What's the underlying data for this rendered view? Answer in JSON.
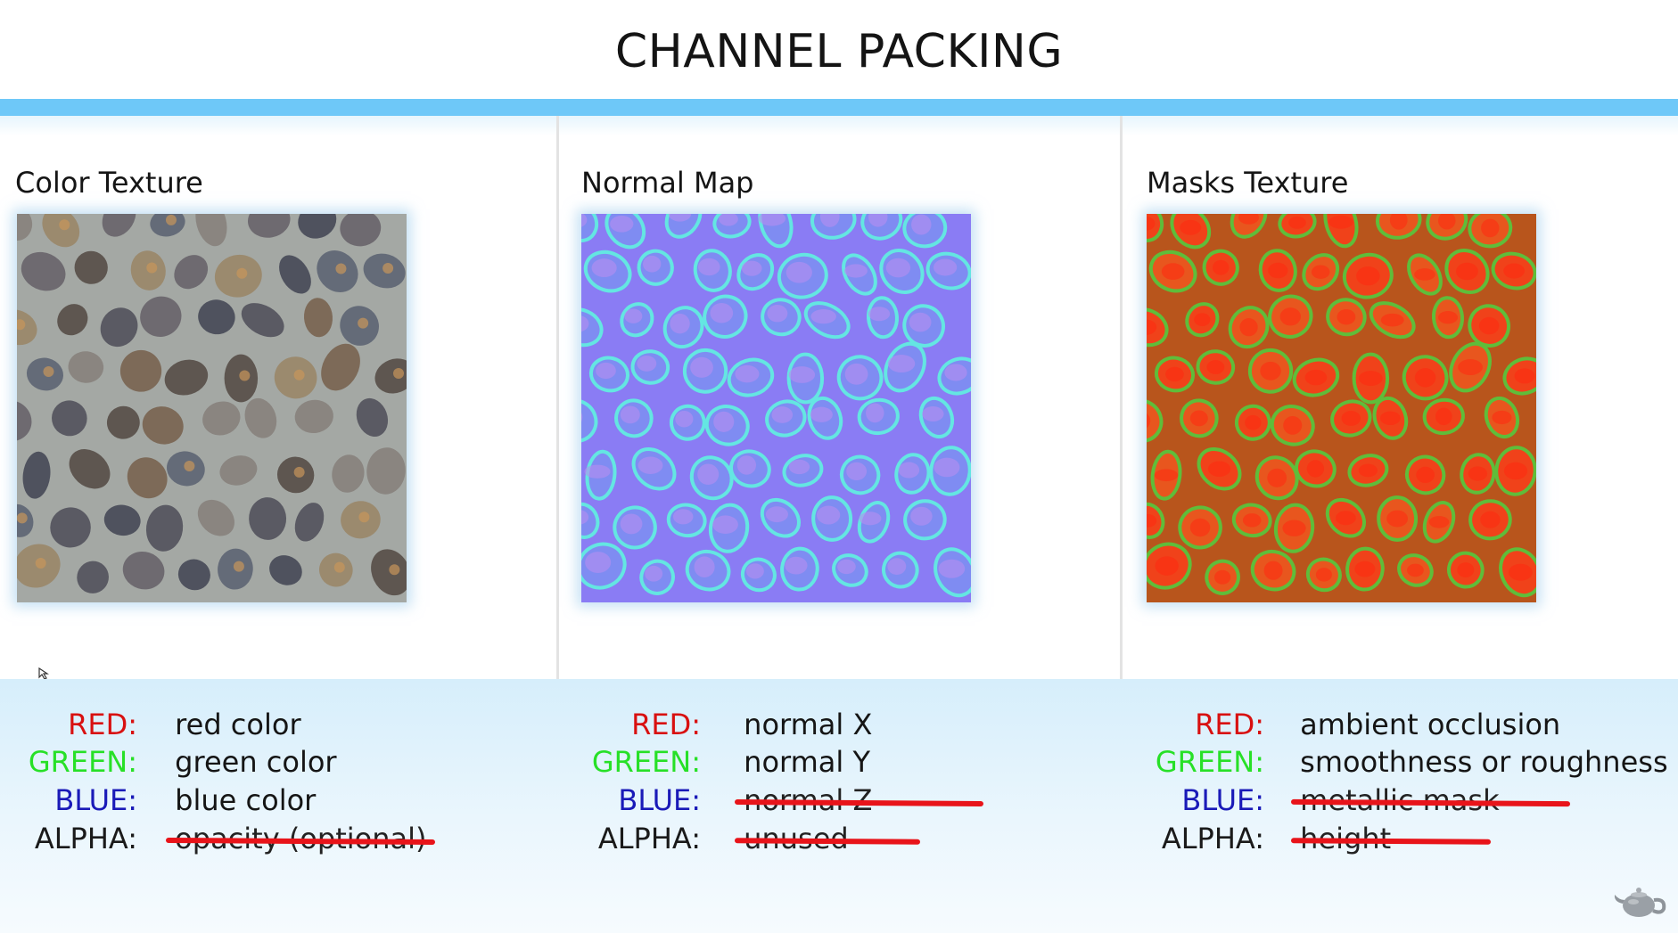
{
  "slide": {
    "title": "CHANNEL PACKING"
  },
  "panels": [
    {
      "label": "Color Texture",
      "channels": [
        {
          "key": "RED:",
          "value": "red color",
          "struck": false
        },
        {
          "key": "GREEN:",
          "value": "green color",
          "struck": false
        },
        {
          "key": "BLUE:",
          "value": "blue color",
          "struck": false
        },
        {
          "key": "ALPHA:",
          "value": "opacity (optional)",
          "struck": true
        }
      ]
    },
    {
      "label": "Normal Map",
      "channels": [
        {
          "key": "RED:",
          "value": "normal X",
          "struck": false
        },
        {
          "key": "GREEN:",
          "value": "normal Y",
          "struck": false
        },
        {
          "key": "BLUE:",
          "value": "normal Z",
          "struck": true
        },
        {
          "key": "ALPHA:",
          "value": "unused",
          "struck": true
        }
      ]
    },
    {
      "label": "Masks Texture",
      "channels": [
        {
          "key": "RED:",
          "value": "ambient occlusion",
          "struck": false
        },
        {
          "key": "GREEN:",
          "value": "smoothness or roughness",
          "struck": false
        },
        {
          "key": "BLUE:",
          "value": "metallic mask",
          "struck": true
        },
        {
          "key": "ALPHA:",
          "value": "height",
          "struck": true
        }
      ]
    }
  ],
  "colors": {
    "accent_bar": "#6ec8f8",
    "red_key": "#d81010",
    "green_key": "#27e027",
    "blue_key": "#1a1ab8",
    "strike": "#e8141a"
  },
  "icons": {
    "corner": "teapot-icon",
    "cursor": "mouse-cursor-icon"
  }
}
